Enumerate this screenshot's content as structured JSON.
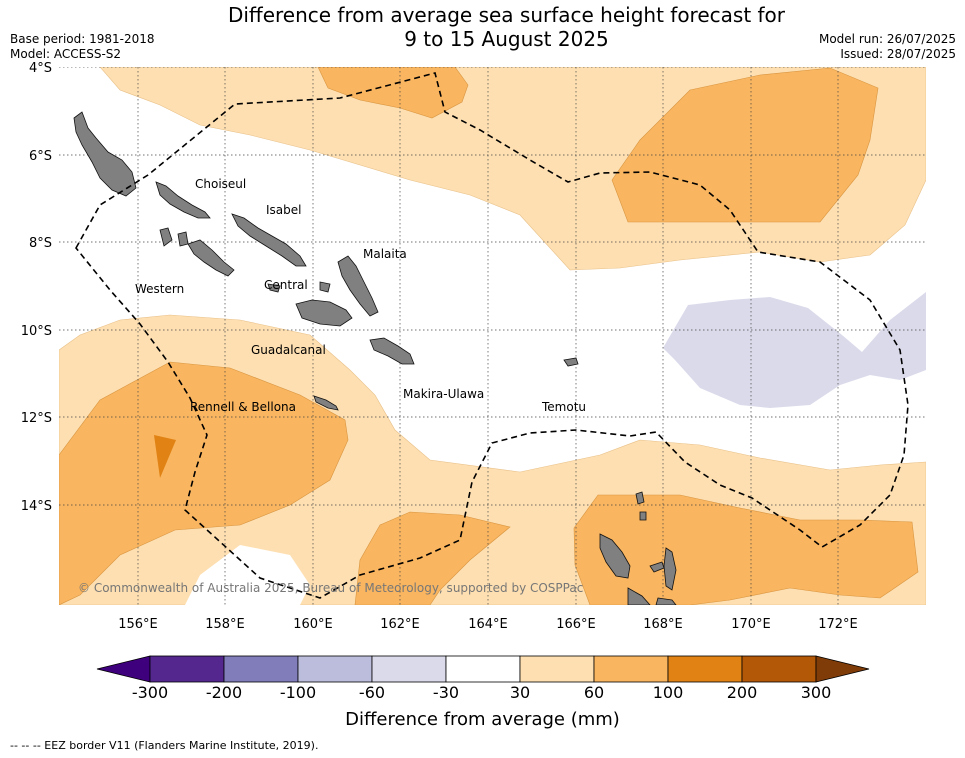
{
  "header": {
    "title_line1": "Difference from average sea surface height forecast for",
    "title_line2": "9 to 15 August 2025",
    "base_period": "Base period: 1981-2018",
    "model": "Model: ACCESS-S2",
    "model_run": "Model run: 26/07/2025",
    "issued": "Issued: 28/07/2025"
  },
  "map": {
    "lat_labels": [
      "4°S",
      "6°S",
      "8°S",
      "10°S",
      "12°S",
      "14°S"
    ],
    "lon_labels": [
      "156°E",
      "158°E",
      "160°E",
      "162°E",
      "164°E",
      "166°E",
      "168°E",
      "170°E",
      "172°E"
    ],
    "regions": [
      "Choiseul",
      "Isabel",
      "Malaita",
      "Western",
      "Central",
      "Guadalcanal",
      "Makira-Ulawa",
      "Rennell & Bellona",
      "Temotu"
    ],
    "copyright": "© Commonwealth of Australia 2025, Bureau of Meteorology, supported by COSPPac",
    "land_color": "#808080",
    "eez_line_style": "dashed black"
  },
  "colorbar": {
    "label": "Difference from average (mm)",
    "ticks": [
      "-300",
      "-200",
      "-100",
      "-60",
      "-30",
      "30",
      "60",
      "100",
      "200",
      "300"
    ],
    "colors": [
      "#3f007d",
      "#54278f",
      "#807dba",
      "#bcbddc",
      "#dadaeb",
      "#ffffff",
      "#fddfb1",
      "#f9b55f",
      "#e08214",
      "#b35806",
      "#7f3b08"
    ]
  },
  "footnote": "--  --  -- EEZ border V11 (Flanders Marine Institute, 2019)."
}
